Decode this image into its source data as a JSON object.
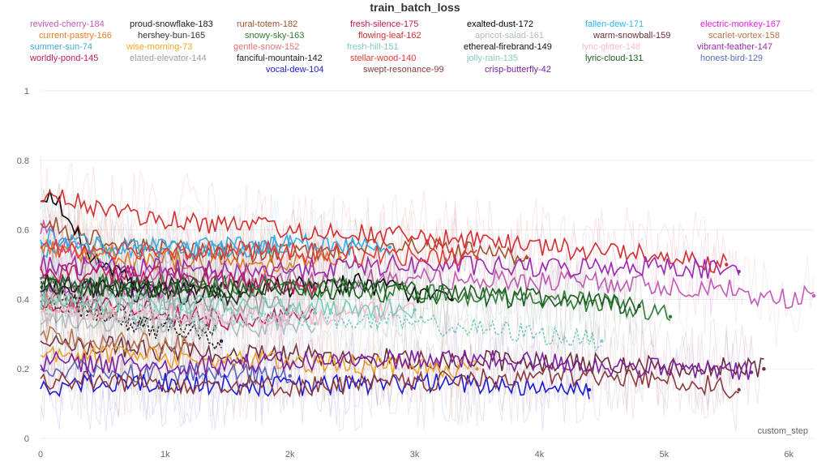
{
  "chart_data": {
    "type": "line",
    "title": "train_batch_loss",
    "xlabel": "custom_step",
    "ylabel": "",
    "xlim": [
      0,
      6200
    ],
    "ylim": [
      0,
      1
    ],
    "x_ticks": [
      {
        "value": 0,
        "label": "0"
      },
      {
        "value": 1000,
        "label": "1k"
      },
      {
        "value": 2000,
        "label": "2k"
      },
      {
        "value": 3000,
        "label": "3k"
      },
      {
        "value": 4000,
        "label": "4k"
      },
      {
        "value": 5000,
        "label": "5k"
      },
      {
        "value": 6000,
        "label": "6k"
      }
    ],
    "y_ticks": [
      {
        "value": 0,
        "label": "0"
      },
      {
        "value": 0.2,
        "label": "0.2"
      },
      {
        "value": 0.4,
        "label": "0.4"
      },
      {
        "value": 0.6,
        "label": "0.6"
      },
      {
        "value": 0.8,
        "label": "0.8"
      },
      {
        "value": 1,
        "label": "1"
      }
    ],
    "series": [
      {
        "name": "revived-cherry-184",
        "color": "#c45ab8",
        "dash": false,
        "points": [
          [
            0,
            0.6
          ],
          [
            600,
            0.48
          ],
          [
            1500,
            0.45
          ],
          [
            3000,
            0.46
          ],
          [
            4200,
            0.45
          ],
          [
            5000,
            0.44
          ],
          [
            5500,
            0.43
          ],
          [
            5800,
            0.4
          ],
          [
            6200,
            0.41
          ]
        ]
      },
      {
        "name": "proud-snowflake-183",
        "color": "#1a1a1a",
        "dash": true,
        "points": [
          [
            0,
            0.45
          ],
          [
            300,
            0.38
          ],
          [
            700,
            0.33
          ],
          [
            1200,
            0.3
          ],
          [
            1450,
            0.28
          ]
        ]
      },
      {
        "name": "rural-totem-182",
        "color": "#a0522d",
        "dash": false,
        "points": [
          [
            0,
            0.62
          ],
          [
            800,
            0.55
          ],
          [
            1800,
            0.53
          ],
          [
            3000,
            0.55
          ],
          [
            3900,
            0.52
          ]
        ]
      },
      {
        "name": "fresh-silence-175",
        "color": "#c2185b",
        "dash": false,
        "points": [
          [
            0,
            0.4
          ],
          [
            500,
            0.38
          ],
          [
            1000,
            0.36
          ],
          [
            1500,
            0.34
          ],
          [
            2200,
            0.36
          ]
        ]
      },
      {
        "name": "exalted-dust-172",
        "color": "#000000",
        "dash": false,
        "points": [
          [
            0,
            0.7
          ],
          [
            200,
            0.66
          ],
          [
            400,
            0.52
          ],
          [
            700,
            0.45
          ],
          [
            1500,
            0.42
          ],
          [
            2500,
            0.45
          ],
          [
            3300,
            0.4
          ]
        ]
      },
      {
        "name": "fallen-dew-171",
        "color": "#29b6f6",
        "dash": false,
        "points": [
          [
            0,
            0.55
          ],
          [
            600,
            0.55
          ],
          [
            1200,
            0.54
          ],
          [
            2000,
            0.56
          ],
          [
            2800,
            0.55
          ]
        ]
      },
      {
        "name": "electric-monkey-167",
        "color": "#e91ee0",
        "dash": false,
        "points": [
          [
            0,
            0.45
          ],
          [
            500,
            0.44
          ],
          [
            900,
            0.43
          ],
          [
            1200,
            0.42
          ]
        ]
      },
      {
        "name": "current-pastry-166",
        "color": "#e67e22",
        "dash": false,
        "points": [
          [
            0,
            0.55
          ],
          [
            800,
            0.52
          ],
          [
            1600,
            0.5
          ],
          [
            2400,
            0.52
          ]
        ]
      },
      {
        "name": "hershey-bun-165",
        "color": "#333333",
        "dash": true,
        "points": [
          [
            0,
            0.4
          ],
          [
            400,
            0.37
          ],
          [
            900,
            0.34
          ],
          [
            1400,
            0.32
          ]
        ]
      },
      {
        "name": "snowy-sky-163",
        "color": "#2e7d32",
        "dash": false,
        "points": [
          [
            0,
            0.45
          ],
          [
            1500,
            0.44
          ],
          [
            2500,
            0.43
          ],
          [
            3500,
            0.41
          ],
          [
            4500,
            0.39
          ],
          [
            5000,
            0.36
          ],
          [
            5050,
            0.35
          ]
        ]
      },
      {
        "name": "flowing-leaf-162",
        "color": "#d32f2f",
        "dash": false,
        "points": [
          [
            0,
            0.7
          ],
          [
            500,
            0.66
          ],
          [
            1000,
            0.63
          ],
          [
            2000,
            0.6
          ],
          [
            3000,
            0.58
          ],
          [
            4000,
            0.55
          ],
          [
            5000,
            0.53
          ],
          [
            5500,
            0.5
          ]
        ]
      },
      {
        "name": "apricot-salad-161",
        "color": "#b0bec5",
        "dash": false,
        "points": [
          [
            0,
            0.35
          ],
          [
            800,
            0.33
          ],
          [
            1500,
            0.32
          ],
          [
            2200,
            0.33
          ]
        ]
      },
      {
        "name": "warm-snowball-159",
        "color": "#6d2c3b",
        "dash": false,
        "points": [
          [
            0,
            0.28
          ],
          [
            1000,
            0.25
          ],
          [
            2000,
            0.24
          ],
          [
            3000,
            0.23
          ],
          [
            4000,
            0.22
          ],
          [
            5000,
            0.21
          ],
          [
            5800,
            0.2
          ]
        ]
      },
      {
        "name": "scarlet-vortex-158",
        "color": "#b5734a",
        "dash": false,
        "points": [
          [
            0,
            0.3
          ],
          [
            600,
            0.28
          ],
          [
            1200,
            0.27
          ]
        ]
      },
      {
        "name": "summer-sun-74",
        "color": "#3fa9d6",
        "dash": false,
        "points": [
          [
            0,
            0.58
          ],
          [
            500,
            0.55
          ],
          [
            1200,
            0.55
          ],
          [
            2000,
            0.56
          ]
        ]
      },
      {
        "name": "wise-morning-73",
        "color": "#f5a623",
        "dash": false,
        "points": [
          [
            0,
            0.25
          ],
          [
            1000,
            0.23
          ],
          [
            2000,
            0.22
          ],
          [
            3000,
            0.21
          ],
          [
            3500,
            0.2
          ]
        ]
      },
      {
        "name": "gentle-snow-152",
        "color": "#e57373",
        "dash": false,
        "points": [
          [
            0,
            0.4
          ],
          [
            300,
            0.38
          ],
          [
            600,
            0.36
          ]
        ]
      },
      {
        "name": "fresh-hill-151",
        "color": "#80cbc4",
        "dash": true,
        "points": [
          [
            0,
            0.38
          ],
          [
            1000,
            0.36
          ],
          [
            2000,
            0.35
          ],
          [
            3000,
            0.33
          ],
          [
            4000,
            0.3
          ],
          [
            4500,
            0.28
          ]
        ]
      },
      {
        "name": "ethereal-firebrand-149",
        "color": "#111111",
        "dash": false,
        "points": [
          [
            0,
            0.45
          ],
          [
            600,
            0.43
          ],
          [
            1200,
            0.44
          ]
        ]
      },
      {
        "name": "lyric-glitter-148",
        "color": "#f8bbd0",
        "dash": false,
        "points": [
          [
            0,
            0.35
          ],
          [
            1000,
            0.36
          ],
          [
            2000,
            0.35
          ],
          [
            3000,
            0.37
          ]
        ]
      },
      {
        "name": "vibrant-feather-147",
        "color": "#9c27b0",
        "dash": false,
        "points": [
          [
            0,
            0.5
          ],
          [
            1500,
            0.48
          ],
          [
            3000,
            0.5
          ],
          [
            4000,
            0.49
          ],
          [
            5000,
            0.5
          ],
          [
            5600,
            0.48
          ]
        ]
      },
      {
        "name": "worldly-pond-145",
        "color": "#c2185b",
        "dash": false,
        "points": [
          [
            0,
            0.48
          ],
          [
            700,
            0.47
          ],
          [
            1500,
            0.46
          ],
          [
            2200,
            0.43
          ]
        ]
      },
      {
        "name": "elated-elevator-144",
        "color": "#9e9e9e",
        "dash": false,
        "points": [
          [
            0,
            0.42
          ],
          [
            1000,
            0.4
          ],
          [
            2000,
            0.38
          ]
        ]
      },
      {
        "name": "fanciful-mountain-142",
        "color": "#222222",
        "dash": false,
        "points": [
          [
            0,
            0.44
          ],
          [
            800,
            0.42
          ],
          [
            1600,
            0.41
          ]
        ]
      },
      {
        "name": "stellar-wood-140",
        "color": "#e53935",
        "dash": false,
        "points": [
          [
            0,
            0.55
          ],
          [
            1500,
            0.54
          ],
          [
            2500,
            0.53
          ],
          [
            3500,
            0.52
          ]
        ]
      },
      {
        "name": "jolly-rain-135",
        "color": "#7fcdbb",
        "dash": false,
        "points": [
          [
            0,
            0.4
          ],
          [
            1500,
            0.38
          ],
          [
            3000,
            0.37
          ]
        ]
      },
      {
        "name": "lyric-cloud-131",
        "color": "#1b5e20",
        "dash": false,
        "points": [
          [
            0,
            0.44
          ],
          [
            2000,
            0.43
          ],
          [
            3000,
            0.42
          ],
          [
            4000,
            0.4
          ],
          [
            4800,
            0.38
          ]
        ]
      },
      {
        "name": "honest-bird-129",
        "color": "#5c6bc0",
        "dash": false,
        "points": [
          [
            0,
            0.2
          ],
          [
            1000,
            0.19
          ],
          [
            2000,
            0.18
          ]
        ]
      },
      {
        "name": "vocal-dew-104",
        "color": "#1a1ad6",
        "dash": false,
        "points": [
          [
            0,
            0.15
          ],
          [
            1000,
            0.16
          ],
          [
            2000,
            0.15
          ],
          [
            3000,
            0.16
          ],
          [
            4000,
            0.15
          ],
          [
            4400,
            0.14
          ]
        ]
      },
      {
        "name": "swept-resonance-99",
        "color": "#8b3a3a",
        "dash": false,
        "points": [
          [
            0,
            0.17
          ],
          [
            1000,
            0.16
          ],
          [
            2000,
            0.15
          ],
          [
            3000,
            0.16
          ],
          [
            4000,
            0.18
          ],
          [
            5000,
            0.17
          ],
          [
            5600,
            0.14
          ]
        ]
      },
      {
        "name": "crisp-butterfly-42",
        "color": "#7b1fa2",
        "dash": false,
        "points": [
          [
            0,
            0.22
          ],
          [
            1000,
            0.21
          ],
          [
            2000,
            0.22
          ],
          [
            3000,
            0.23
          ],
          [
            4000,
            0.22
          ],
          [
            5000,
            0.2
          ],
          [
            5700,
            0.19
          ]
        ]
      }
    ]
  }
}
